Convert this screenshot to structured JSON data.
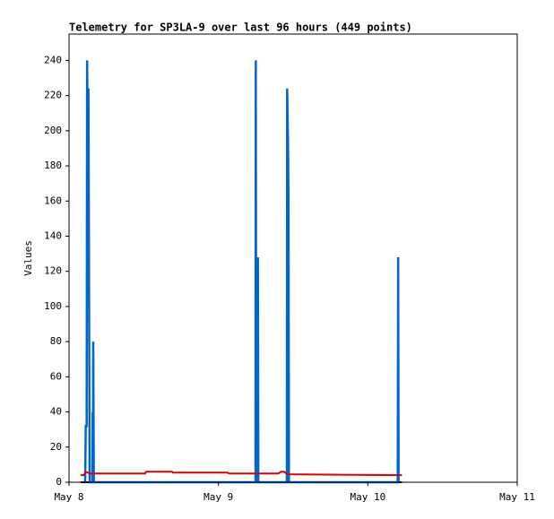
{
  "chart_data": {
    "type": "line",
    "title": "Telemetry for SP3LA-9 over last 96 hours (449 points)",
    "y_label": "Values",
    "xlim": [
      8,
      11
    ],
    "xticks": [
      {
        "value": 8,
        "label": "May 8"
      },
      {
        "value": 9,
        "label": "May 9"
      },
      {
        "value": 10,
        "label": "May 10"
      },
      {
        "value": 11,
        "label": "May 11"
      }
    ],
    "ylim": [
      0,
      255
    ],
    "yticks": [
      0,
      20,
      40,
      60,
      80,
      100,
      120,
      140,
      160,
      180,
      200,
      220,
      240
    ],
    "grid": false,
    "series": [
      {
        "color": "#000000",
        "x": [
          8.078,
          10.228
        ],
        "values": [
          0,
          0
        ]
      },
      {
        "color": "#0066cc",
        "x": [
          8.108,
          8.112,
          8.118,
          8.121,
          8.124,
          8.13,
          8.134,
          8.138,
          8.156,
          8.158,
          8.16,
          8.162,
          8.166,
          9.248,
          9.25,
          9.253,
          9.262,
          9.264,
          9.267,
          9.458,
          9.46,
          9.463,
          9.466,
          9.469,
          9.472,
          10.2,
          10.203,
          10.206
        ],
        "values": [
          0,
          32,
          32,
          240,
          208,
          224,
          112,
          0,
          0,
          40,
          0,
          80,
          0,
          0,
          240,
          0,
          0,
          128,
          0,
          0,
          224,
          208,
          192,
          160,
          0,
          0,
          128,
          0
        ]
      },
      {
        "color": "#dd0000",
        "x": [
          8.078,
          8.1,
          8.11,
          8.14,
          8.51,
          8.515,
          8.69,
          8.695,
          9.06,
          9.07,
          9.4,
          9.42,
          9.44,
          9.46,
          10.228
        ],
        "values": [
          4,
          4,
          6,
          5,
          5,
          6,
          6,
          5.5,
          5.5,
          5,
          5,
          6,
          6,
          4.5,
          4
        ]
      }
    ]
  }
}
